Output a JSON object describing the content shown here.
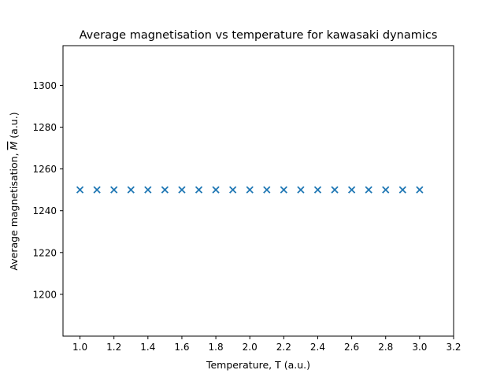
{
  "chart_data": {
    "type": "scatter",
    "title": "Average magnetisation vs temperature for kawasaki dynamics",
    "xlabel": "Temperature, T (a.u.)",
    "ylabel_prefix": "Average magnetisation, ",
    "ylabel_symbol": "M",
    "ylabel_suffix": " (a.u.)",
    "xlim": [
      0.9,
      3.2
    ],
    "ylim": [
      1180,
      1319
    ],
    "x_ticks": [
      1.0,
      1.2,
      1.4,
      1.6,
      1.8,
      2.0,
      2.2,
      2.4,
      2.6,
      2.8,
      3.0,
      3.2
    ],
    "x_tick_labels": [
      "1.0",
      "1.2",
      "1.4",
      "1.6",
      "1.8",
      "2.0",
      "2.2",
      "2.4",
      "2.6",
      "2.8",
      "3.0",
      "3.2"
    ],
    "y_ticks": [
      1200,
      1220,
      1240,
      1260,
      1280,
      1300
    ],
    "y_tick_labels": [
      "1200",
      "1220",
      "1240",
      "1260",
      "1280",
      "1300"
    ],
    "marker": "x",
    "grid": false,
    "colors": {
      "series": "#1f77b4",
      "axes": "#000000"
    },
    "series": [
      {
        "x": [
          1.0,
          1.1,
          1.2,
          1.3,
          1.4,
          1.5,
          1.6,
          1.7,
          1.8,
          1.9,
          2.0,
          2.1,
          2.2,
          2.3,
          2.4,
          2.5,
          2.6,
          2.7,
          2.8,
          2.9,
          3.0
        ],
        "y": [
          1250,
          1250,
          1250,
          1250,
          1250,
          1250,
          1250,
          1250,
          1250,
          1250,
          1250,
          1250,
          1250,
          1250,
          1250,
          1250,
          1250,
          1250,
          1250,
          1250,
          1250
        ]
      }
    ]
  }
}
